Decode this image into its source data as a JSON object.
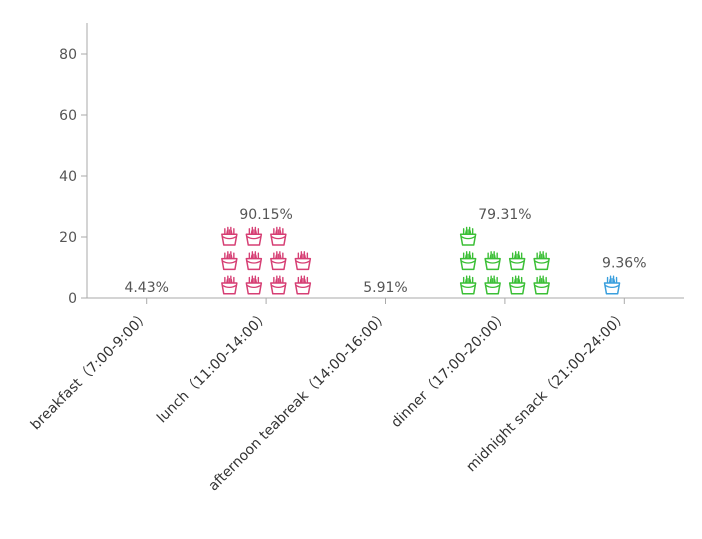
{
  "chart_data": {
    "type": "bar",
    "style": "pictorial",
    "icon": "french-fries-icon",
    "categories": [
      "breakfast（7:00-9:00）",
      "lunch（11:00-14:00）",
      "afternoon teabreak（14:00-16:00）",
      "dinner（17:00-20:00）",
      "midnight snack（21:00-24:00）"
    ],
    "values": [
      4.43,
      90.15,
      5.91,
      79.31,
      9.36
    ],
    "data_labels": [
      "4.43%",
      "90.15%",
      "5.91%",
      "79.31%",
      "9.36%"
    ],
    "colors": [
      "#333333",
      "#d63f74",
      "#e8923e",
      "#3bbf36",
      "#3a9fdd"
    ],
    "yticks": [
      0,
      20,
      40,
      60,
      80
    ],
    "ylim": [
      0,
      88
    ],
    "grid": false,
    "legend": "none"
  }
}
